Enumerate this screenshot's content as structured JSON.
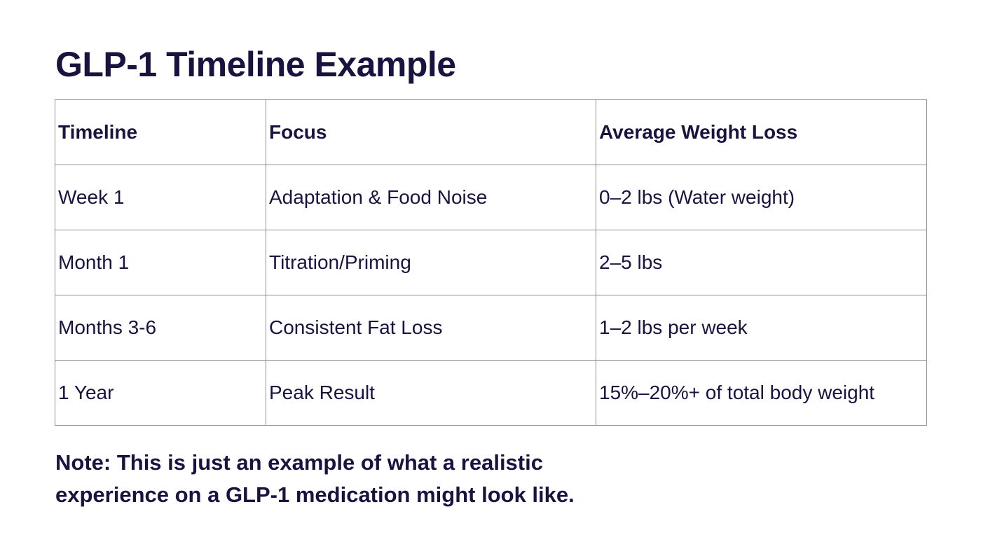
{
  "title": "GLP-1 Timeline Example",
  "table": {
    "headers": [
      "Timeline",
      "Focus",
      "Average Weight Loss"
    ],
    "rows": [
      [
        "Week 1",
        "Adaptation & Food Noise",
        "0–2 lbs (Water weight)"
      ],
      [
        "Month 1",
        "Titration/Priming",
        "2–5 lbs"
      ],
      [
        "Months 3-6",
        "Consistent Fat Loss",
        "1–2 lbs per week"
      ],
      [
        "1 Year",
        "Peak Result",
        "15%–20%+ of total body weight"
      ]
    ]
  },
  "note": {
    "line1": "Note: This is just an example of what a realistic",
    "line2": "experience on a GLP-1 medication might look like."
  },
  "colors": {
    "text": "#1a1340",
    "border": "#8e8e8e",
    "background": "#ffffff"
  }
}
